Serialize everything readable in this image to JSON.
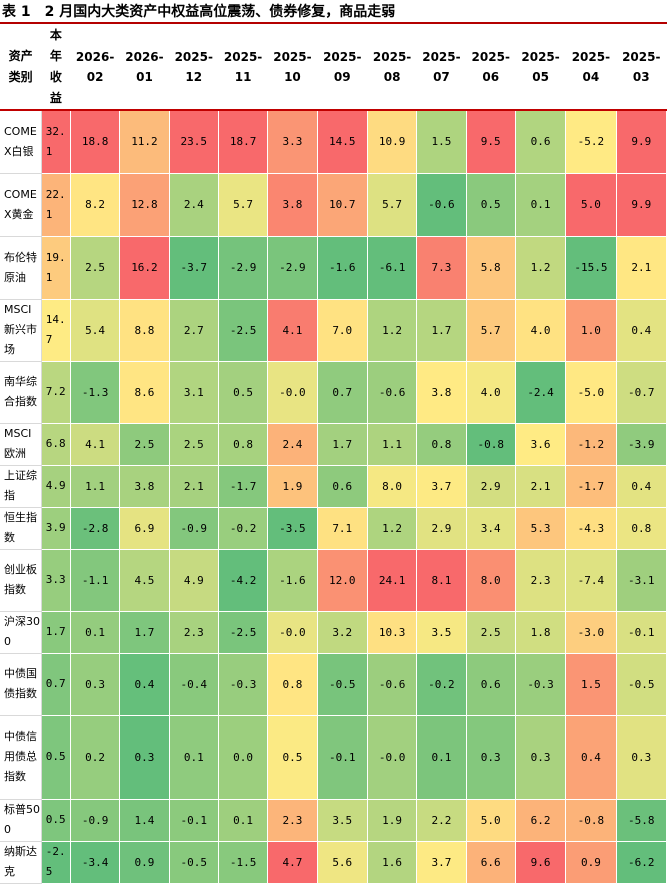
{
  "title": "表 1　2 月国内大类资产中权益高位震荡、债券修复，商品走弱",
  "headers": {
    "asset": "资产类别",
    "ytd": "本年收益",
    "months": [
      "2026-02",
      "2026-01",
      "2025-12",
      "2025-11",
      "2025-10",
      "2025-09",
      "2025-08",
      "2025-07",
      "2025-06",
      "2025-05",
      "2025-04",
      "2025-03"
    ]
  },
  "rows": [
    {
      "name": "COMEX白银",
      "ytd": "32.1",
      "values": [
        "18.8",
        "11.2",
        "23.5",
        "18.7",
        "3.3",
        "14.5",
        "10.9",
        "1.5",
        "9.5",
        "0.6",
        "-5.2",
        "9.9"
      ]
    },
    {
      "name": "COMEX黄金",
      "ytd": "22.1",
      "values": [
        "8.2",
        "12.8",
        "2.4",
        "5.7",
        "3.8",
        "10.7",
        "5.7",
        "-0.6",
        "0.5",
        "0.1",
        "5.0",
        "9.9"
      ]
    },
    {
      "name": "布伦特原油",
      "ytd": "19.1",
      "values": [
        "2.5",
        "16.2",
        "-3.7",
        "-2.9",
        "-2.9",
        "-1.6",
        "-6.1",
        "7.3",
        "5.8",
        "1.2",
        "-15.5",
        "2.1"
      ]
    },
    {
      "name": "MSCI新兴市场",
      "ytd": "14.7",
      "values": [
        "5.4",
        "8.8",
        "2.7",
        "-2.5",
        "4.1",
        "7.0",
        "1.2",
        "1.7",
        "5.7",
        "4.0",
        "1.0",
        "0.4"
      ]
    },
    {
      "name": "南华综合指数",
      "ytd": "7.2",
      "values": [
        "-1.3",
        "8.6",
        "3.1",
        "0.5",
        "-0.0",
        "0.7",
        "-0.6",
        "3.8",
        "4.0",
        "-2.4",
        "-5.0",
        "-0.7"
      ]
    },
    {
      "name": "MSCI欧洲",
      "ytd": "6.8",
      "values": [
        "4.1",
        "2.5",
        "2.5",
        "0.8",
        "2.4",
        "1.7",
        "1.1",
        "0.8",
        "-0.8",
        "3.6",
        "-1.2",
        "-3.9"
      ]
    },
    {
      "name": "上证综指",
      "ytd": "4.9",
      "values": [
        "1.1",
        "3.8",
        "2.1",
        "-1.7",
        "1.9",
        "0.6",
        "8.0",
        "3.7",
        "2.9",
        "2.1",
        "-1.7",
        "0.4"
      ]
    },
    {
      "name": "恒生指数",
      "ytd": "3.9",
      "values": [
        "-2.8",
        "6.9",
        "-0.9",
        "-0.2",
        "-3.5",
        "7.1",
        "1.2",
        "2.9",
        "3.4",
        "5.3",
        "-4.3",
        "0.8"
      ]
    },
    {
      "name": "创业板指数",
      "ytd": "3.3",
      "values": [
        "-1.1",
        "4.5",
        "4.9",
        "-4.2",
        "-1.6",
        "12.0",
        "24.1",
        "8.1",
        "8.0",
        "2.3",
        "-7.4",
        "-3.1"
      ]
    },
    {
      "name": "沪深300",
      "ytd": "1.7",
      "values": [
        "0.1",
        "1.7",
        "2.3",
        "-2.5",
        "-0.0",
        "3.2",
        "10.3",
        "3.5",
        "2.5",
        "1.8",
        "-3.0",
        "-0.1"
      ]
    },
    {
      "name": "中债国债指数",
      "ytd": "0.7",
      "values": [
        "0.3",
        "0.4",
        "-0.4",
        "-0.3",
        "0.8",
        "-0.5",
        "-0.6",
        "-0.2",
        "0.6",
        "-0.3",
        "1.5",
        "-0.5"
      ]
    },
    {
      "name": "中债信用债总指数",
      "ytd": "0.5",
      "values": [
        "0.2",
        "0.3",
        "0.1",
        "0.0",
        "0.5",
        "-0.1",
        "-0.0",
        "0.1",
        "0.3",
        "0.3",
        "0.4",
        "0.3"
      ]
    },
    {
      "name": "标普500",
      "ytd": "0.5",
      "values": [
        "-0.9",
        "1.4",
        "-0.1",
        "0.1",
        "2.3",
        "3.5",
        "1.9",
        "2.2",
        "5.0",
        "6.2",
        "-0.8",
        "-5.8"
      ]
    },
    {
      "name": "纳斯达克",
      "ytd": "-2.5",
      "values": [
        "-3.4",
        "0.9",
        "-0.5",
        "-1.5",
        "4.7",
        "5.6",
        "1.6",
        "3.7",
        "6.6",
        "9.6",
        "0.9",
        "-6.2"
      ]
    }
  ]
}
